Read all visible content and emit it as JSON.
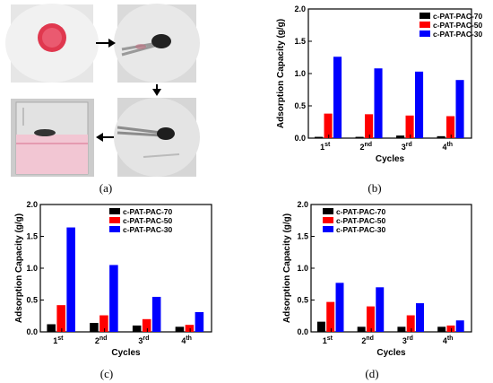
{
  "panels": {
    "a": {
      "label": "(a)"
    },
    "b": {
      "label": "(b)"
    },
    "c": {
      "label": "(c)"
    },
    "d": {
      "label": "(d)"
    }
  },
  "colors": {
    "s70": "#000000",
    "s50": "#ff0000",
    "s30": "#0000ff"
  },
  "photos": [
    {
      "desc": "pink-dye-in-dish",
      "bg": "#e9e9e9",
      "spot": "#e0384f"
    },
    {
      "desc": "sponge-on-tweezers",
      "bg": "#dcdcdc"
    },
    {
      "desc": "sponge-after-adsorption",
      "bg": "#d8d8d8"
    },
    {
      "desc": "beaker-pink-solution",
      "bg": "#cfcfcf"
    }
  ],
  "chart_data": [
    {
      "panel": "b",
      "type": "bar",
      "categories": [
        "1st",
        "2nd",
        "3rd",
        "4th"
      ],
      "series": [
        {
          "name": "c-PAT-PAC-70",
          "values": [
            0.02,
            0.02,
            0.04,
            0.03
          ]
        },
        {
          "name": "c-PAT-PAC-50",
          "values": [
            0.38,
            0.37,
            0.35,
            0.34
          ]
        },
        {
          "name": "c-PAT-PAC-30",
          "values": [
            1.26,
            1.08,
            1.03,
            0.9
          ]
        }
      ],
      "xlabel": "Cycles",
      "ylabel": "Adsorption Capacity (g/g)",
      "ylim": [
        0,
        2.0
      ],
      "yticks": [
        "0.0",
        "0.5",
        "1.0",
        "1.5",
        "2.0"
      ],
      "legend": "top-right"
    },
    {
      "panel": "c",
      "type": "bar",
      "categories": [
        "1st",
        "2nd",
        "3rd",
        "4th"
      ],
      "series": [
        {
          "name": "c-PAT-PAC-70",
          "values": [
            0.12,
            0.14,
            0.1,
            0.08
          ]
        },
        {
          "name": "c-PAT-PAC-50",
          "values": [
            0.42,
            0.26,
            0.2,
            0.11
          ]
        },
        {
          "name": "c-PAT-PAC-30",
          "values": [
            1.64,
            1.05,
            0.55,
            0.31
          ]
        }
      ],
      "xlabel": "Cycles",
      "ylabel": "Adsorption Capacity (g/g)",
      "ylim": [
        0,
        2.0
      ],
      "yticks": [
        "0.0",
        "0.5",
        "1.0",
        "1.5",
        "2.0"
      ],
      "legend": "top-right"
    },
    {
      "panel": "d",
      "type": "bar",
      "categories": [
        "1st",
        "2nd",
        "3rd",
        "4th"
      ],
      "series": [
        {
          "name": "c-PAT-PAC-70",
          "values": [
            0.16,
            0.08,
            0.08,
            0.08
          ]
        },
        {
          "name": "c-PAT-PAC-50",
          "values": [
            0.47,
            0.4,
            0.26,
            0.1
          ]
        },
        {
          "name": "c-PAT-PAC-30",
          "values": [
            0.77,
            0.7,
            0.45,
            0.18
          ]
        }
      ],
      "xlabel": "Cycles",
      "ylabel": "Adsorption Capacity (g/g)",
      "ylim": [
        0,
        2.0
      ],
      "yticks": [
        "0.0",
        "0.5",
        "1.0",
        "1.5",
        "2.0"
      ],
      "legend": "top-left"
    }
  ]
}
